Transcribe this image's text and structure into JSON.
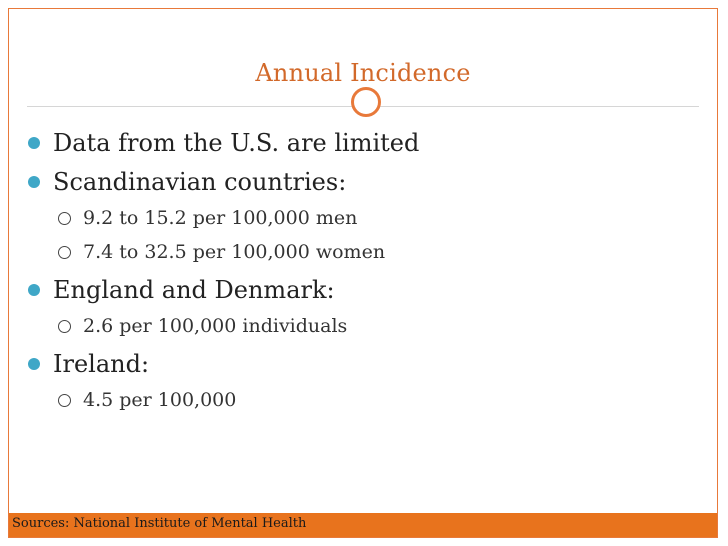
{
  "slide": {
    "title": "Annual Incidence",
    "items": [
      {
        "level": 1,
        "text": "Data from the U.S. are limited"
      },
      {
        "level": 1,
        "text": "Scandinavian countries:"
      },
      {
        "level": 2,
        "text": "9.2 to 15.2 per 100,000 men"
      },
      {
        "level": 2,
        "text": "7.4 to 32.5 per 100,000 women"
      },
      {
        "level": 1,
        "text": "England and Denmark:"
      },
      {
        "level": 2,
        "text": "2.6 per 100,000 individuals"
      },
      {
        "level": 1,
        "text": "Ireland:"
      },
      {
        "level": 2,
        "text": "4.5 per 100,000"
      }
    ],
    "footer": "Sources: National Institute of Mental Health"
  },
  "colors": {
    "accent": "#e8793a",
    "footer_bar": "#e8731d",
    "title": "#d2692a",
    "bullet": "#3fa7c7"
  }
}
